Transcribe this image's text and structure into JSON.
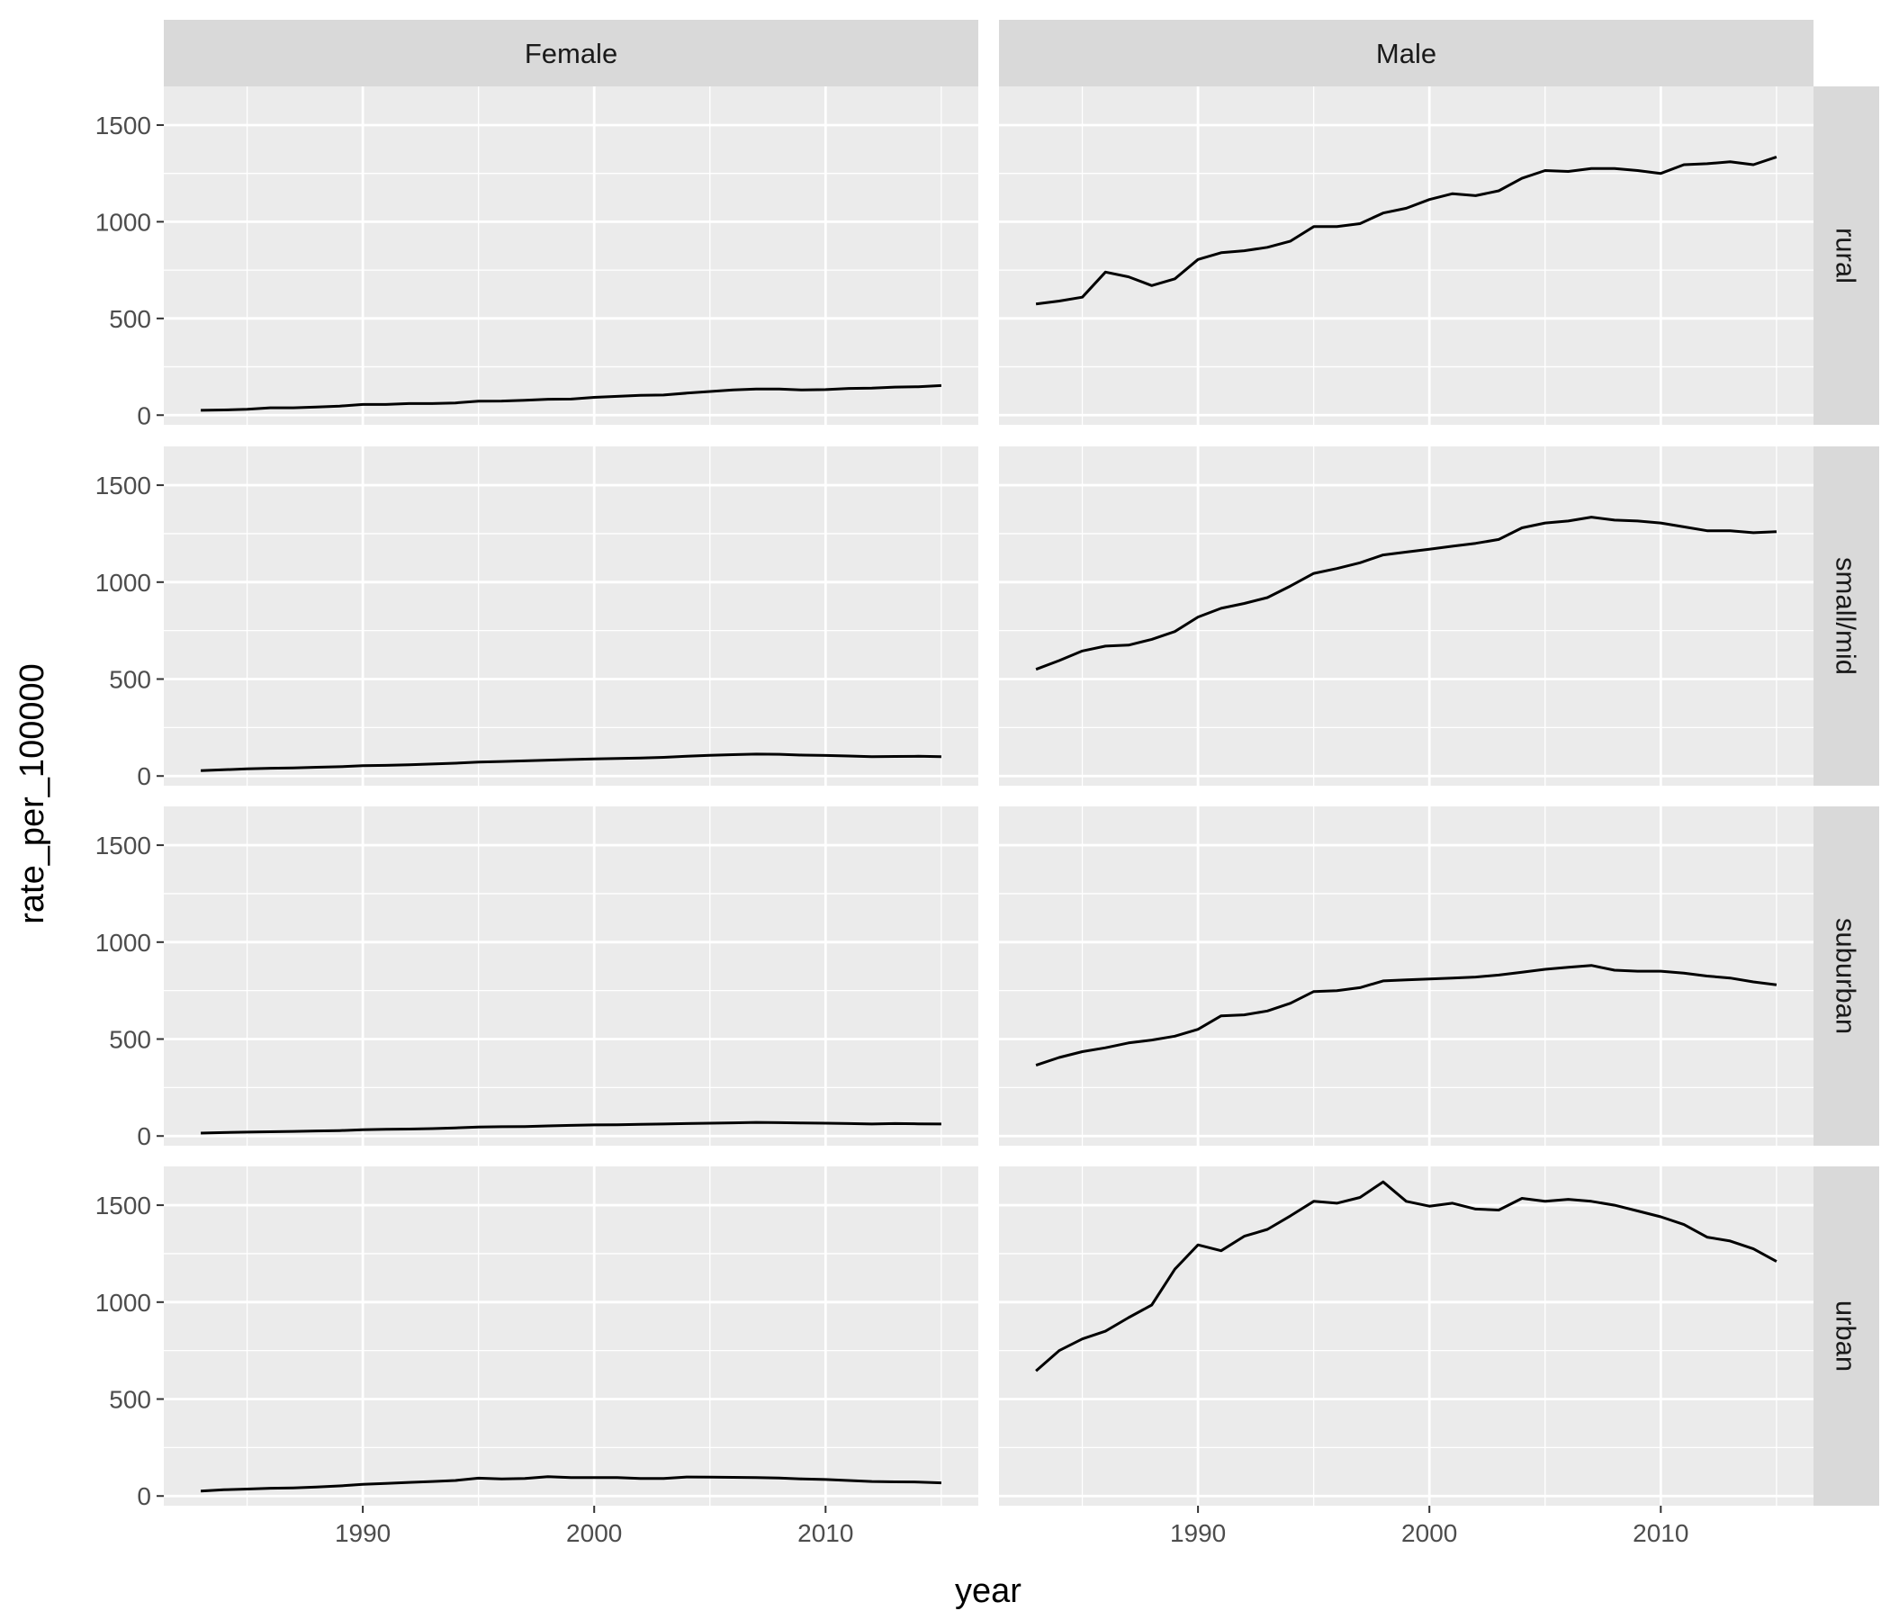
{
  "chart_data": {
    "type": "line",
    "facet_columns": [
      "Female",
      "Male"
    ],
    "facet_rows": [
      "rural",
      "small/mid",
      "suburban",
      "urban"
    ],
    "xlabel": "year",
    "ylabel": "rate_per_100000",
    "xlim": [
      1981.4,
      2016.6
    ],
    "ylim": [
      -50,
      1700
    ],
    "x_ticks": [
      1990,
      2000,
      2010
    ],
    "y_ticks": [
      0,
      500,
      1000,
      1500
    ],
    "grid": true,
    "x": [
      1983,
      1984,
      1985,
      1986,
      1987,
      1988,
      1989,
      1990,
      1991,
      1992,
      1993,
      1994,
      1995,
      1996,
      1997,
      1998,
      1999,
      2000,
      2001,
      2002,
      2003,
      2004,
      2005,
      2006,
      2007,
      2008,
      2009,
      2010,
      2011,
      2012,
      2013,
      2014,
      2015
    ],
    "panels": [
      {
        "row": "rural",
        "col": "Female",
        "values": [
          25,
          27,
          30,
          38,
          38,
          42,
          47,
          55,
          55,
          60,
          60,
          63,
          72,
          73,
          77,
          82,
          83,
          92,
          97,
          102,
          104,
          114,
          122,
          130,
          135,
          135,
          130,
          132,
          138,
          140,
          145,
          147,
          153
        ]
      },
      {
        "row": "rural",
        "col": "Male",
        "values": [
          575,
          590,
          610,
          740,
          715,
          670,
          705,
          805,
          840,
          850,
          868,
          900,
          975,
          975,
          990,
          1045,
          1070,
          1115,
          1145,
          1135,
          1160,
          1225,
          1265,
          1260,
          1275,
          1275,
          1265,
          1250,
          1295,
          1300,
          1310,
          1295,
          1335
        ]
      },
      {
        "row": "small/mid",
        "col": "Female",
        "values": [
          28,
          32,
          37,
          40,
          42,
          45,
          48,
          53,
          55,
          58,
          62,
          66,
          72,
          75,
          78,
          82,
          85,
          88,
          90,
          93,
          96,
          102,
          107,
          110,
          113,
          112,
          108,
          106,
          103,
          100,
          101,
          102,
          100
        ]
      },
      {
        "row": "small/mid",
        "col": "Male",
        "values": [
          550,
          595,
          645,
          670,
          675,
          705,
          745,
          820,
          865,
          890,
          920,
          980,
          1045,
          1070,
          1100,
          1140,
          1155,
          1170,
          1185,
          1200,
          1220,
          1280,
          1305,
          1315,
          1335,
          1320,
          1315,
          1305,
          1285,
          1265,
          1265,
          1255,
          1260
        ]
      },
      {
        "row": "suburban",
        "col": "Female",
        "values": [
          15,
          18,
          20,
          22,
          24,
          26,
          28,
          32,
          35,
          36,
          38,
          42,
          46,
          48,
          49,
          52,
          55,
          57,
          58,
          60,
          62,
          64,
          66,
          68,
          70,
          69,
          67,
          66,
          64,
          62,
          64,
          63,
          62
        ]
      },
      {
        "row": "suburban",
        "col": "Male",
        "values": [
          365,
          405,
          435,
          455,
          480,
          495,
          515,
          550,
          620,
          625,
          645,
          685,
          745,
          750,
          765,
          800,
          805,
          810,
          815,
          820,
          830,
          845,
          860,
          870,
          880,
          855,
          850,
          850,
          840,
          825,
          815,
          795,
          780
        ]
      },
      {
        "row": "urban",
        "col": "Female",
        "values": [
          25,
          32,
          36,
          40,
          42,
          46,
          52,
          60,
          65,
          70,
          75,
          80,
          92,
          88,
          90,
          100,
          95,
          95,
          95,
          90,
          90,
          98,
          97,
          96,
          95,
          93,
          88,
          85,
          80,
          75,
          73,
          72,
          68
        ]
      },
      {
        "row": "urban",
        "col": "Male",
        "values": [
          645,
          750,
          810,
          850,
          920,
          985,
          1170,
          1295,
          1265,
          1340,
          1375,
          1445,
          1520,
          1510,
          1540,
          1620,
          1520,
          1495,
          1510,
          1480,
          1475,
          1535,
          1520,
          1530,
          1520,
          1500,
          1470,
          1440,
          1400,
          1335,
          1315,
          1275,
          1210
        ]
      }
    ]
  }
}
